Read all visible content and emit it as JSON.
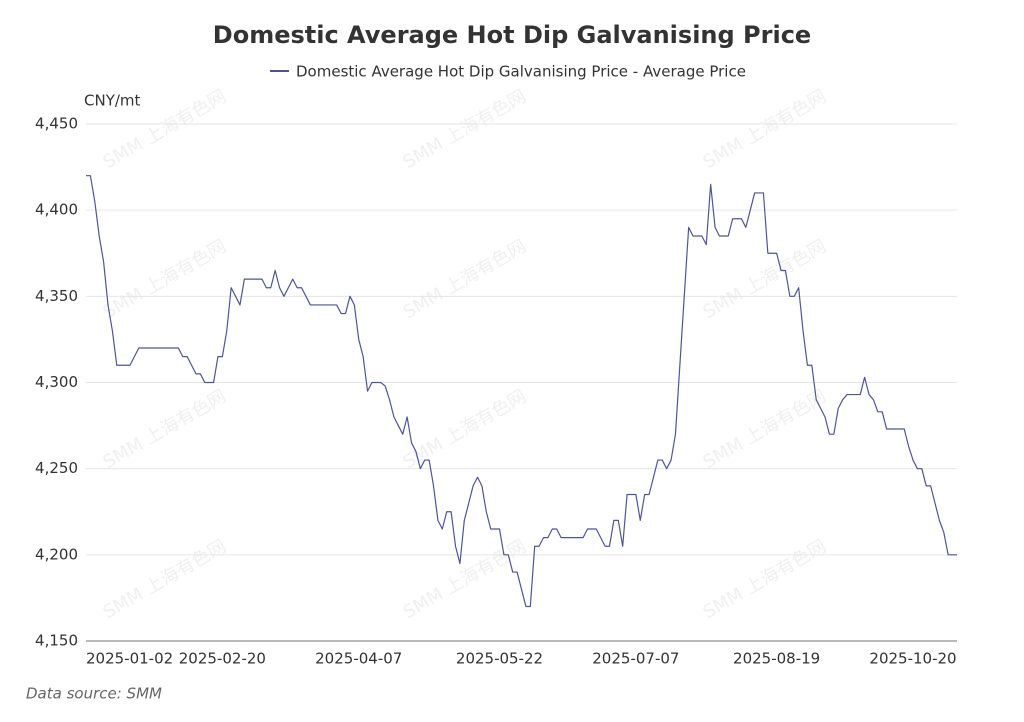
{
  "chart_data": {
    "type": "line",
    "title": "Domestic Average Hot Dip Galvanising Price",
    "y_label": "CNY/mt",
    "source": "Data source:  SMM",
    "watermark": "SMM 上海有色网",
    "grid": true,
    "legend": "top",
    "ylim": [
      4150,
      4450
    ],
    "yticks": [
      {
        "value": 4150,
        "label": "4,150"
      },
      {
        "value": 4200,
        "label": "4,200"
      },
      {
        "value": 4250,
        "label": "4,250"
      },
      {
        "value": 4300,
        "label": "4,300"
      },
      {
        "value": 4350,
        "label": "4,350"
      },
      {
        "value": 4400,
        "label": "4,400"
      },
      {
        "value": 4450,
        "label": "4,450"
      }
    ],
    "categories": [
      "2025-01-02",
      null,
      null,
      null,
      null,
      null,
      null,
      null,
      null,
      null,
      null,
      null,
      null,
      null,
      null,
      null,
      null,
      null,
      null,
      null,
      null,
      null,
      null,
      null,
      null,
      null,
      null,
      null,
      null,
      null,
      null,
      "2025-02-20",
      null,
      null,
      null,
      null,
      null,
      null,
      null,
      null,
      null,
      null,
      null,
      null,
      null,
      null,
      null,
      null,
      null,
      null,
      null,
      null,
      null,
      null,
      null,
      null,
      null,
      null,
      null,
      null,
      null,
      null,
      "2025-04-07",
      null,
      null,
      null,
      null,
      null,
      null,
      null,
      null,
      null,
      null,
      null,
      null,
      null,
      null,
      null,
      null,
      null,
      null,
      null,
      null,
      null,
      null,
      null,
      null,
      null,
      null,
      null,
      null,
      null,
      null,
      null,
      "2025-05-22",
      null,
      null,
      null,
      null,
      null,
      null,
      null,
      null,
      null,
      null,
      null,
      null,
      null,
      null,
      null,
      null,
      null,
      null,
      null,
      null,
      null,
      null,
      null,
      null,
      null,
      null,
      null,
      null,
      null,
      null,
      "2025-07-07",
      null,
      null,
      null,
      null,
      null,
      null,
      null,
      null,
      null,
      null,
      null,
      null,
      null,
      null,
      null,
      null,
      null,
      null,
      null,
      null,
      null,
      null,
      null,
      null,
      null,
      null,
      null,
      null,
      null,
      null,
      null,
      "2025-08-19",
      null,
      null,
      null,
      null,
      null,
      null,
      null,
      null,
      null,
      null,
      null,
      null,
      null,
      null,
      null,
      null,
      null,
      null,
      null,
      null,
      null,
      null,
      null,
      null,
      null,
      null,
      null,
      null,
      null,
      null,
      "2025-10-20",
      null,
      null,
      null,
      null,
      null,
      null,
      null,
      null,
      null,
      null
    ],
    "series": [
      {
        "name": "Domestic Average Hot Dip Galvanising Price - Average Price",
        "color": "#4d5596",
        "values": [
          4420,
          4420,
          4405,
          4385,
          4370,
          4345,
          4330,
          4310,
          4310,
          4310,
          4310,
          4315,
          4320,
          4320,
          4320,
          4320,
          4320,
          4320,
          4320,
          4320,
          4320,
          4320,
          4315,
          4315,
          4310,
          4305,
          4305,
          4300,
          4300,
          4300,
          4315,
          4315,
          4330,
          4355,
          4350,
          4345,
          4360,
          4360,
          4360,
          4360,
          4360,
          4355,
          4355,
          4365,
          4355,
          4350,
          4355,
          4360,
          4355,
          4355,
          4350,
          4345,
          4345,
          4345,
          4345,
          4345,
          4345,
          4345,
          4340,
          4340,
          4350,
          4345,
          4325,
          4315,
          4295,
          4300,
          4300,
          4300,
          4298,
          4290,
          4280,
          4275,
          4270,
          4280,
          4265,
          4260,
          4250,
          4255,
          4255,
          4240,
          4220,
          4215,
          4225,
          4225,
          4205,
          4195,
          4220,
          4230,
          4240,
          4245,
          4240,
          4225,
          4215,
          4215,
          4215,
          4200,
          4200,
          4190,
          4190,
          4180,
          4170,
          4170,
          4205,
          4205,
          4210,
          4210,
          4215,
          4215,
          4210,
          4210,
          4210,
          4210,
          4210,
          4210,
          4215,
          4215,
          4215,
          4210,
          4205,
          4205,
          4220,
          4220,
          4205,
          4235,
          4235,
          4235,
          4220,
          4235,
          4235,
          4245,
          4255,
          4255,
          4250,
          4255,
          4270,
          4310,
          4350,
          4390,
          4385,
          4385,
          4385,
          4380,
          4415,
          4390,
          4385,
          4385,
          4385,
          4395,
          4395,
          4395,
          4390,
          4400,
          4410,
          4410,
          4410,
          4375,
          4375,
          4375,
          4365,
          4365,
          4350,
          4350,
          4355,
          4330,
          4310,
          4310,
          4290,
          4285,
          4280,
          4270,
          4270,
          4285,
          4290,
          4293,
          4293,
          4293,
          4293,
          4303,
          4293,
          4290,
          4283,
          4283,
          4273,
          4273,
          4273,
          4273,
          4273,
          4263,
          4255,
          4250,
          4250,
          4240,
          4240,
          4230,
          4220,
          4213,
          4200,
          4200,
          4200
        ]
      }
    ]
  }
}
